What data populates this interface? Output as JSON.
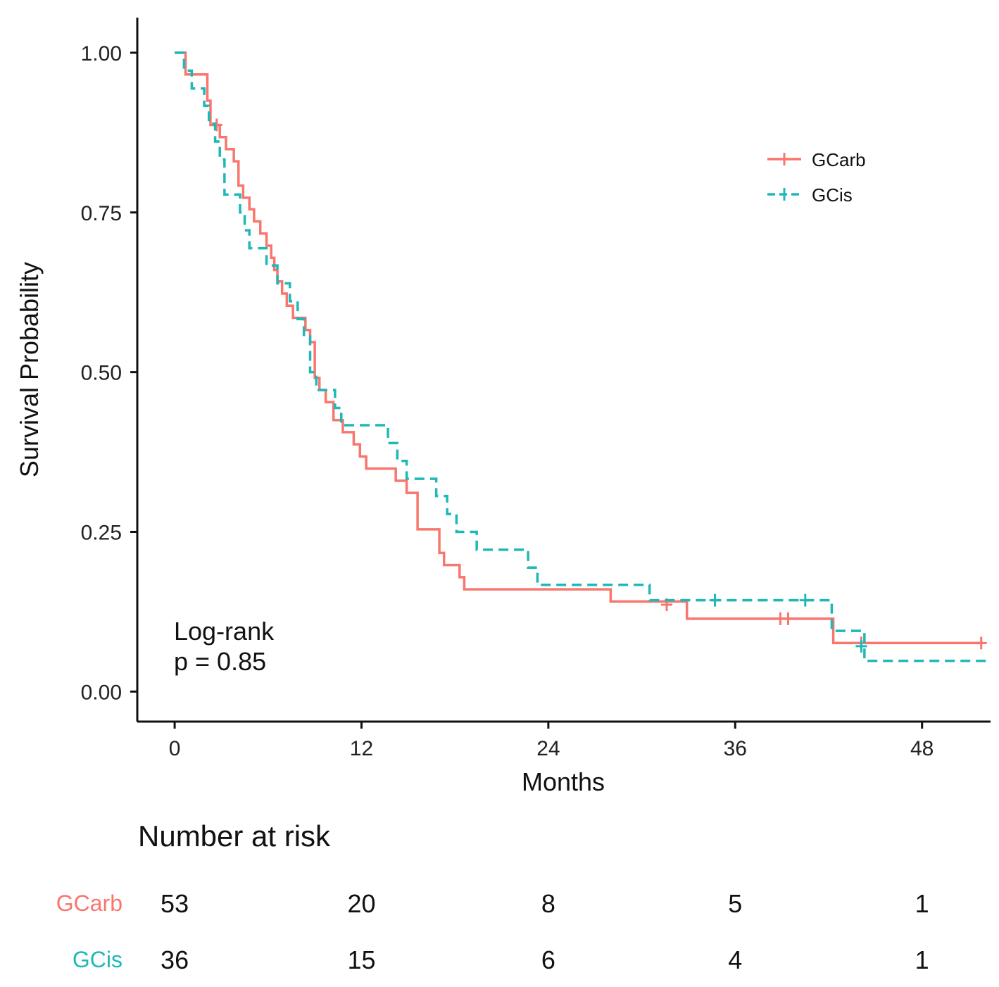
{
  "chart_data": {
    "type": "line",
    "title": "",
    "xlabel": "Months",
    "ylabel": "Survival Probability",
    "xlim": [
      -2.4,
      52.4
    ],
    "ylim": [
      -0.047,
      1.055
    ],
    "xticks": [
      0,
      12,
      24,
      36,
      48
    ],
    "yticks": [
      0.0,
      0.25,
      0.5,
      0.75,
      1.0
    ],
    "ytick_labels": [
      "0.00",
      "0.25",
      "0.50",
      "0.75",
      "1.00"
    ],
    "grid": false,
    "legend_placement": "top-right",
    "annotation": {
      "line1": "Log-rank",
      "line2": "p = 0.85"
    },
    "series": [
      {
        "name": "GCarb",
        "color": "#f8766d",
        "dash": "solid",
        "steps": [
          [
            0.0,
            1.0
          ],
          [
            0.7,
            0.966
          ],
          [
            2.1,
            0.925
          ],
          [
            2.3,
            0.887
          ],
          [
            2.9,
            0.868
          ],
          [
            3.3,
            0.849
          ],
          [
            3.8,
            0.83
          ],
          [
            4.1,
            0.792
          ],
          [
            4.4,
            0.773
          ],
          [
            4.8,
            0.755
          ],
          [
            5.1,
            0.736
          ],
          [
            5.5,
            0.717
          ],
          [
            5.9,
            0.698
          ],
          [
            6.2,
            0.679
          ],
          [
            6.4,
            0.66
          ],
          [
            6.6,
            0.642
          ],
          [
            6.9,
            0.623
          ],
          [
            7.2,
            0.604
          ],
          [
            7.6,
            0.585
          ],
          [
            8.4,
            0.566
          ],
          [
            8.7,
            0.547
          ],
          [
            9.0,
            0.491
          ],
          [
            9.3,
            0.472
          ],
          [
            9.7,
            0.453
          ],
          [
            10.2,
            0.425
          ],
          [
            10.8,
            0.406
          ],
          [
            11.5,
            0.387
          ],
          [
            11.9,
            0.368
          ],
          [
            12.3,
            0.349
          ],
          [
            14.2,
            0.33
          ],
          [
            14.9,
            0.311
          ],
          [
            15.6,
            0.254
          ],
          [
            17.0,
            0.217
          ],
          [
            17.3,
            0.198
          ],
          [
            18.3,
            0.179
          ],
          [
            18.6,
            0.16
          ],
          [
            28.0,
            0.141
          ],
          [
            32.9,
            0.114
          ],
          [
            42.3,
            0.076
          ],
          [
            51.9,
            0.076
          ]
        ],
        "censors": [
          [
            2.7,
            0.887
          ],
          [
            31.6,
            0.136
          ],
          [
            38.9,
            0.114
          ],
          [
            39.4,
            0.114
          ],
          [
            44.1,
            0.076
          ],
          [
            51.8,
            0.076
          ]
        ]
      },
      {
        "name": "GCis",
        "color": "#1fb8b8",
        "dash": "dashed",
        "steps": [
          [
            0.0,
            1.0
          ],
          [
            0.6,
            0.972
          ],
          [
            1.1,
            0.944
          ],
          [
            1.9,
            0.917
          ],
          [
            2.2,
            0.889
          ],
          [
            2.6,
            0.861
          ],
          [
            2.9,
            0.833
          ],
          [
            3.2,
            0.778
          ],
          [
            4.2,
            0.75
          ],
          [
            4.5,
            0.722
          ],
          [
            4.8,
            0.694
          ],
          [
            5.9,
            0.667
          ],
          [
            6.6,
            0.639
          ],
          [
            7.4,
            0.611
          ],
          [
            7.9,
            0.583
          ],
          [
            8.3,
            0.556
          ],
          [
            8.7,
            0.5
          ],
          [
            9.1,
            0.472
          ],
          [
            10.3,
            0.444
          ],
          [
            10.7,
            0.417
          ],
          [
            13.7,
            0.389
          ],
          [
            14.3,
            0.361
          ],
          [
            14.9,
            0.333
          ],
          [
            16.8,
            0.306
          ],
          [
            17.5,
            0.278
          ],
          [
            18.1,
            0.25
          ],
          [
            19.4,
            0.222
          ],
          [
            22.7,
            0.194
          ],
          [
            23.3,
            0.167
          ],
          [
            30.5,
            0.143
          ],
          [
            42.2,
            0.095
          ],
          [
            44.3,
            0.048
          ],
          [
            52.3,
            0.048
          ]
        ],
        "censors": [
          [
            34.7,
            0.143
          ],
          [
            40.5,
            0.143
          ],
          [
            44.1,
            0.071
          ]
        ]
      }
    ],
    "risk_table": {
      "title": "Number at risk",
      "times": [
        0,
        12,
        24,
        36,
        48
      ],
      "rows": [
        {
          "name": "GCarb",
          "color": "#f8766d",
          "values": [
            "53",
            "20",
            "8",
            "5",
            "1"
          ]
        },
        {
          "name": "GCis",
          "color": "#1fb8b8",
          "values": [
            "36",
            "15",
            "6",
            "4",
            "1"
          ]
        }
      ]
    }
  }
}
